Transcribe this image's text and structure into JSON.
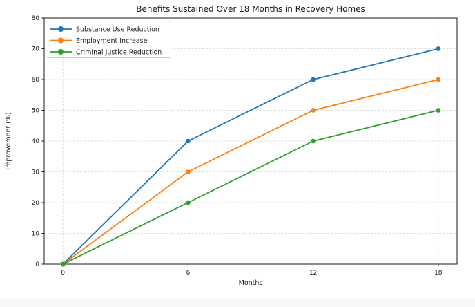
{
  "chart_data": {
    "type": "line",
    "title": "Benefits Sustained Over 18 Months in Recovery Homes",
    "xlabel": "Months",
    "ylabel": "Improvement (%)",
    "x": [
      0,
      6,
      12,
      18
    ],
    "series": [
      {
        "name": "Substance Use Reduction",
        "color": "#1f77b4",
        "values": [
          0,
          40,
          60,
          70
        ]
      },
      {
        "name": "Employment Increase",
        "color": "#ff7f0e",
        "values": [
          0,
          30,
          50,
          60
        ]
      },
      {
        "name": "Criminal Justice Reduction",
        "color": "#2ca02c",
        "values": [
          0,
          20,
          40,
          50
        ]
      }
    ],
    "xticks": [
      0,
      6,
      12,
      18
    ],
    "yticks": [
      0,
      10,
      20,
      30,
      40,
      50,
      60,
      70,
      80
    ],
    "ylim": [
      0,
      80
    ],
    "xlim_padding": 0.05,
    "grid": true,
    "grid_style": "dashed",
    "legend_position": "upper left",
    "marker": "circle"
  },
  "colors": {
    "grid": "#d5d5d5",
    "spine": "#1a1a1a",
    "legend_border": "#cccccc",
    "footer_strip": "#f8f8f8"
  }
}
